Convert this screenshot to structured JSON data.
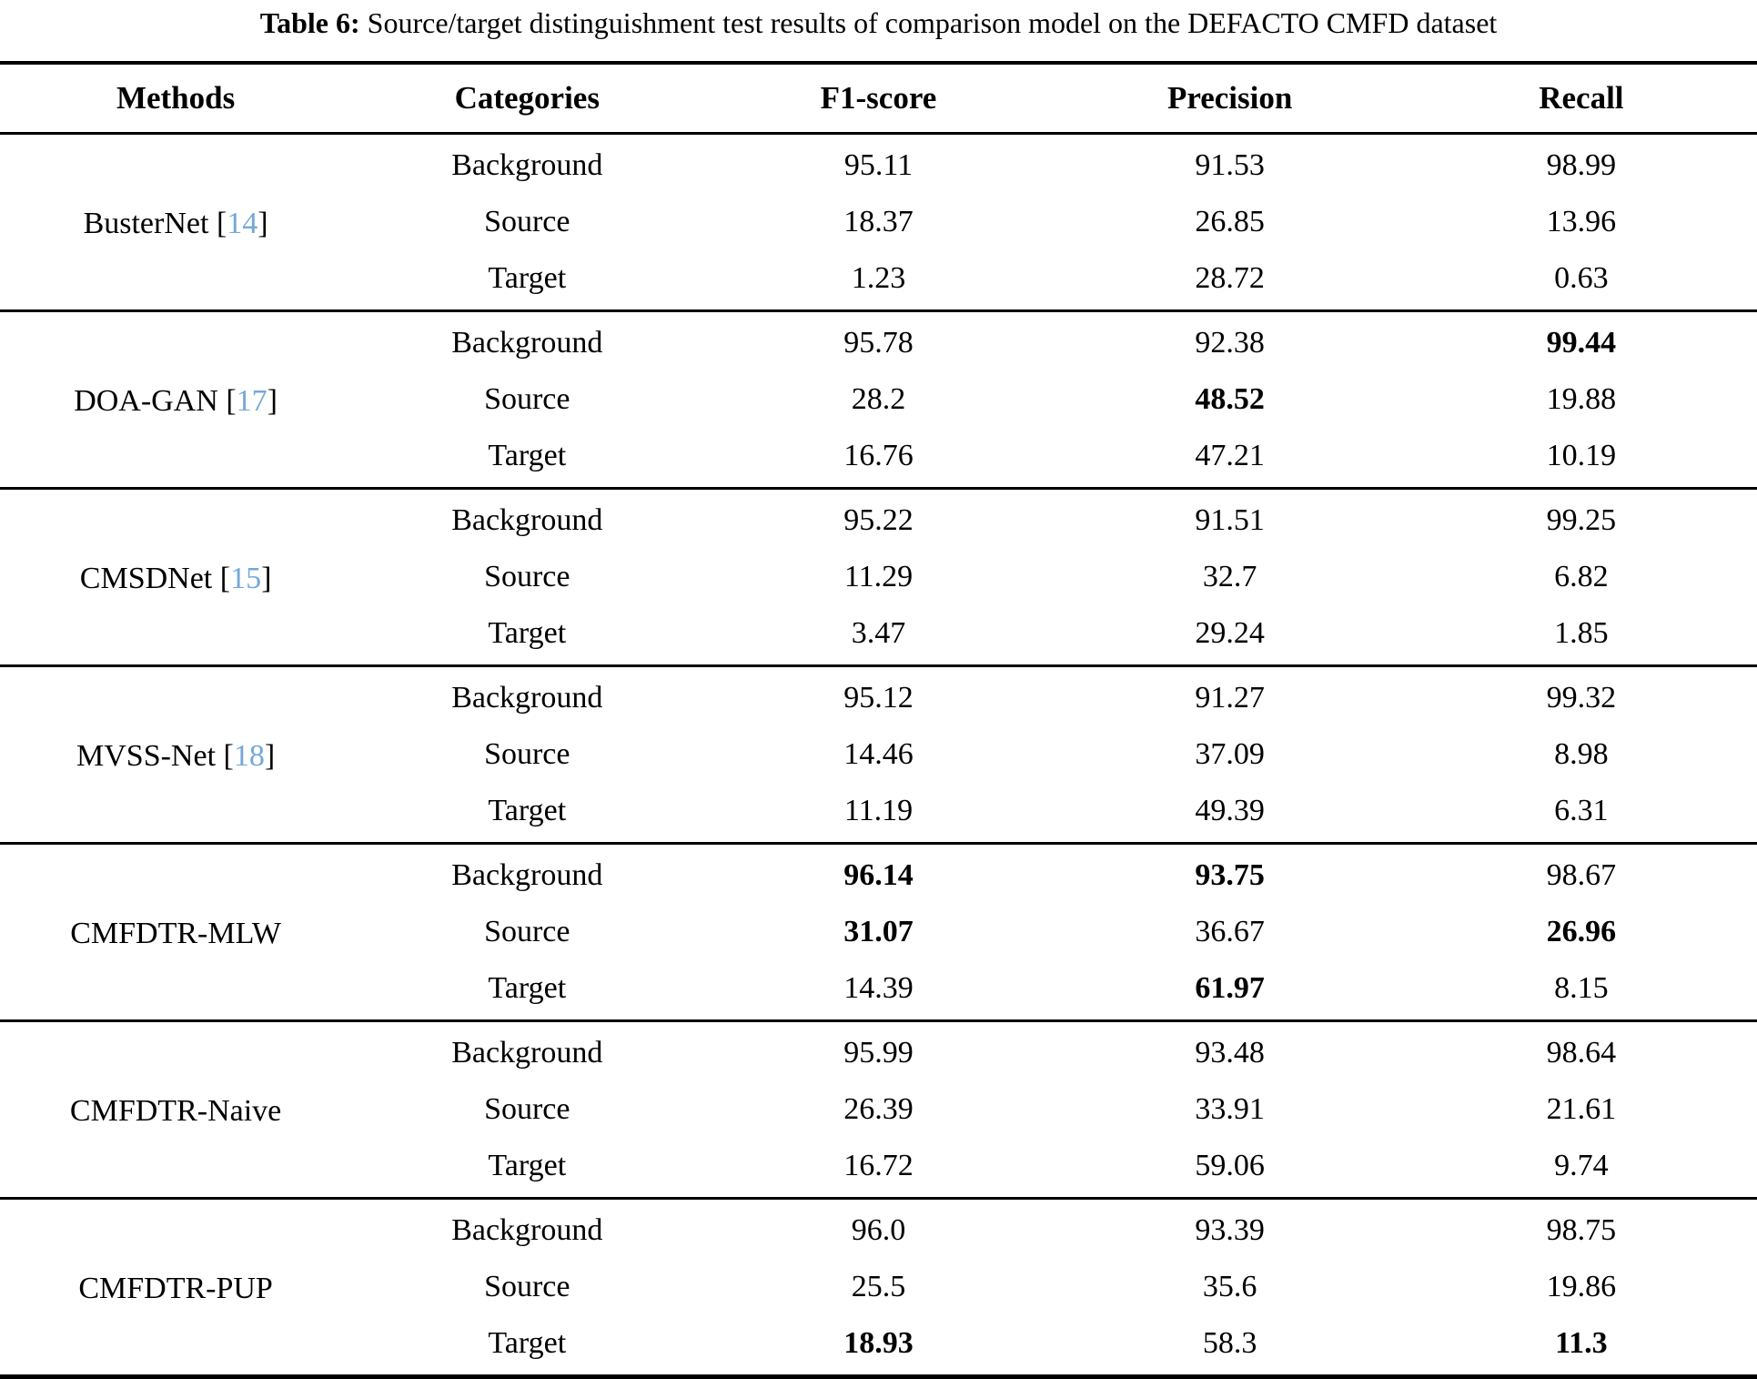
{
  "caption": {
    "label": "Table 6:",
    "text": "Source/target distinguishment test results of comparison model on the DEFACTO CMFD dataset"
  },
  "colors": {
    "citation_blue": "#74a8d8",
    "rule_black": "#000000"
  },
  "table": {
    "headers": [
      "Methods",
      "Categories",
      "F1-score",
      "Precision",
      "Recall"
    ],
    "groups": [
      {
        "method": "BusterNet",
        "cite_open": " [",
        "cite_num": "14",
        "cite_close": "]",
        "rows": [
          {
            "category": "Background",
            "values": [
              "95.11",
              "91.53",
              "98.99"
            ],
            "bold": [
              false,
              false,
              false
            ]
          },
          {
            "category": "Source",
            "values": [
              "18.37",
              "26.85",
              "13.96"
            ],
            "bold": [
              false,
              false,
              false
            ]
          },
          {
            "category": "Target",
            "values": [
              "1.23",
              "28.72",
              "0.63"
            ],
            "bold": [
              false,
              false,
              false
            ]
          }
        ]
      },
      {
        "method": "DOA-GAN",
        "cite_open": " [",
        "cite_num": "17",
        "cite_close": "]",
        "rows": [
          {
            "category": "Background",
            "values": [
              "95.78",
              "92.38",
              "99.44"
            ],
            "bold": [
              false,
              false,
              true
            ]
          },
          {
            "category": "Source",
            "values": [
              "28.2",
              "48.52",
              "19.88"
            ],
            "bold": [
              false,
              true,
              false
            ]
          },
          {
            "category": "Target",
            "values": [
              "16.76",
              "47.21",
              "10.19"
            ],
            "bold": [
              false,
              false,
              false
            ]
          }
        ]
      },
      {
        "method": "CMSDNet",
        "cite_open": " [",
        "cite_num": "15",
        "cite_close": "]",
        "rows": [
          {
            "category": "Background",
            "values": [
              "95.22",
              "91.51",
              "99.25"
            ],
            "bold": [
              false,
              false,
              false
            ]
          },
          {
            "category": "Source",
            "values": [
              "11.29",
              "32.7",
              "6.82"
            ],
            "bold": [
              false,
              false,
              false
            ]
          },
          {
            "category": "Target",
            "values": [
              "3.47",
              "29.24",
              "1.85"
            ],
            "bold": [
              false,
              false,
              false
            ]
          }
        ]
      },
      {
        "method": "MVSS-Net",
        "cite_open": " [",
        "cite_num": "18",
        "cite_close": "]",
        "rows": [
          {
            "category": "Background",
            "values": [
              "95.12",
              "91.27",
              "99.32"
            ],
            "bold": [
              false,
              false,
              false
            ]
          },
          {
            "category": "Source",
            "values": [
              "14.46",
              "37.09",
              "8.98"
            ],
            "bold": [
              false,
              false,
              false
            ]
          },
          {
            "category": "Target",
            "values": [
              "11.19",
              "49.39",
              "6.31"
            ],
            "bold": [
              false,
              false,
              false
            ]
          }
        ]
      },
      {
        "method": "CMFDTR-MLW",
        "rows": [
          {
            "category": "Background",
            "values": [
              "96.14",
              "93.75",
              "98.67"
            ],
            "bold": [
              true,
              true,
              false
            ]
          },
          {
            "category": "Source",
            "values": [
              "31.07",
              "36.67",
              "26.96"
            ],
            "bold": [
              true,
              false,
              true
            ]
          },
          {
            "category": "Target",
            "values": [
              "14.39",
              "61.97",
              "8.15"
            ],
            "bold": [
              false,
              true,
              false
            ]
          }
        ]
      },
      {
        "method": "CMFDTR-Naive",
        "rows": [
          {
            "category": "Background",
            "values": [
              "95.99",
              "93.48",
              "98.64"
            ],
            "bold": [
              false,
              false,
              false
            ]
          },
          {
            "category": "Source",
            "values": [
              "26.39",
              "33.91",
              "21.61"
            ],
            "bold": [
              false,
              false,
              false
            ]
          },
          {
            "category": "Target",
            "values": [
              "16.72",
              "59.06",
              "9.74"
            ],
            "bold": [
              false,
              false,
              false
            ]
          }
        ]
      },
      {
        "method": "CMFDTR-PUP",
        "rows": [
          {
            "category": "Background",
            "values": [
              "96.0",
              "93.39",
              "98.75"
            ],
            "bold": [
              false,
              false,
              false
            ]
          },
          {
            "category": "Source",
            "values": [
              "25.5",
              "35.6",
              "19.86"
            ],
            "bold": [
              false,
              false,
              false
            ]
          },
          {
            "category": "Target",
            "values": [
              "18.93",
              "58.3",
              "11.3"
            ],
            "bold": [
              true,
              false,
              true
            ]
          }
        ]
      }
    ]
  }
}
